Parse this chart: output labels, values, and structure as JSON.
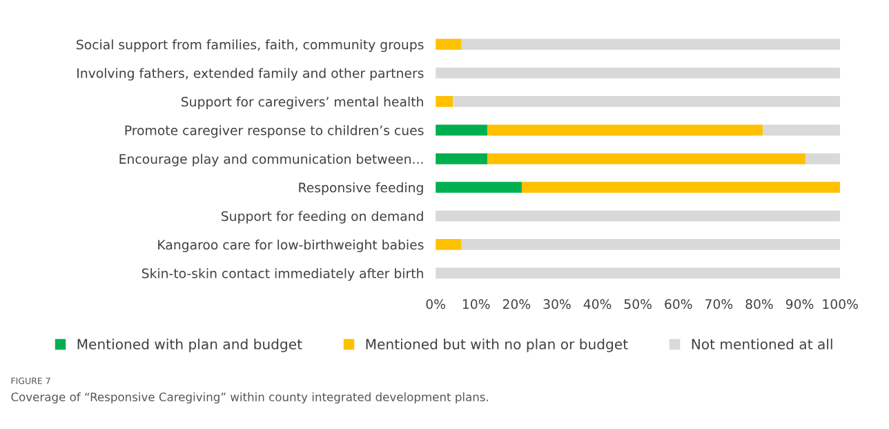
{
  "chart_data": {
    "type": "bar",
    "orientation": "horizontal",
    "stacked": true,
    "categories": [
      "Social support from families, faith, community groups",
      "Involving fathers, extended family and other partners",
      "Support for caregivers’ mental health",
      "Promote caregiver response to children’s cues",
      "Encourage play and communication between...",
      "Responsive feeding",
      "Support for feeding on demand",
      "Kangaroo care for low-birthweight babies",
      "Skin-to-skin contact immediately after birth"
    ],
    "series": [
      {
        "name": "Mentioned with plan and budget",
        "color": "#00b050",
        "values": [
          0,
          0,
          0,
          12.8,
          12.8,
          21.3,
          0,
          0,
          0
        ]
      },
      {
        "name": "Mentioned but with no plan or budget",
        "color": "#ffc000",
        "values": [
          6.4,
          0,
          4.3,
          68.1,
          78.7,
          78.7,
          0,
          6.4,
          0
        ]
      },
      {
        "name": "Not mentioned at all",
        "color": "#d9d9d9",
        "values": [
          93.6,
          100,
          95.7,
          19.1,
          8.5,
          0,
          100,
          93.6,
          100
        ]
      }
    ],
    "xlim": [
      0,
      100
    ],
    "xticks": [
      {
        "value": 0,
        "label": "0%"
      },
      {
        "value": 10,
        "label": "10%"
      },
      {
        "value": 20,
        "label": "20%"
      },
      {
        "value": 30,
        "label": "30%"
      },
      {
        "value": 40,
        "label": "40%"
      },
      {
        "value": 50,
        "label": "50%"
      },
      {
        "value": 60,
        "label": "60%"
      },
      {
        "value": 70,
        "label": "70%"
      },
      {
        "value": 80,
        "label": "80%"
      },
      {
        "value": 90,
        "label": "90%"
      },
      {
        "value": 100,
        "label": "100%"
      }
    ],
    "grid": false,
    "legend": "bottom",
    "annotations": [
      "FIGURE 7",
      "Coverage of “Responsive Caregiving” within county integrated development plans."
    ]
  }
}
